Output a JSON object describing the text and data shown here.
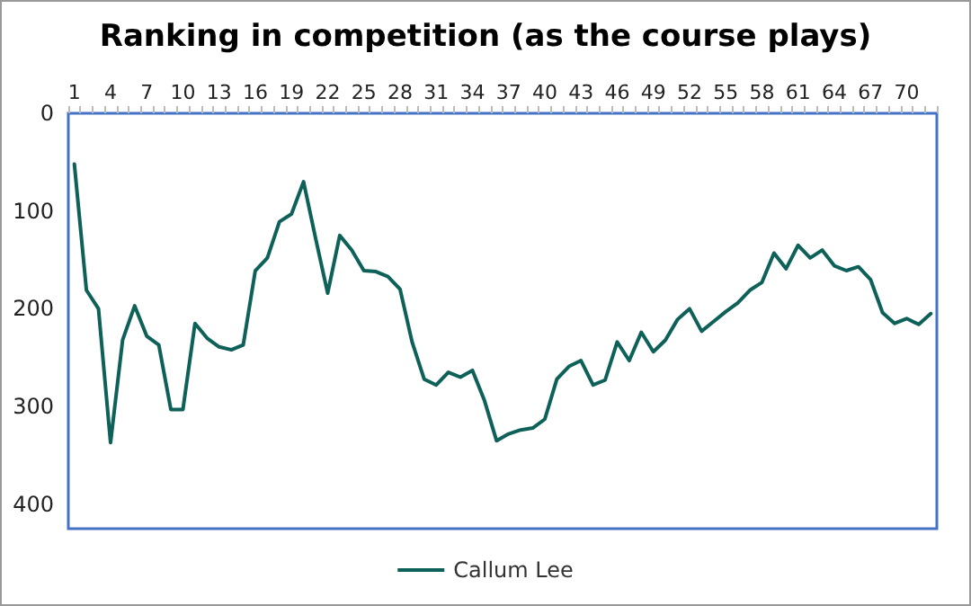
{
  "chart_data": {
    "type": "line",
    "title": "Ranking in competition (as the course plays)",
    "categories": [
      "1",
      null,
      null,
      "4",
      null,
      null,
      "7",
      null,
      null,
      "10",
      null,
      null,
      "13",
      null,
      null,
      "16",
      null,
      null,
      "19",
      null,
      null,
      "22",
      null,
      null,
      "25",
      null,
      null,
      "28",
      null,
      null,
      "31",
      null,
      null,
      "34",
      null,
      null,
      "37",
      null,
      null,
      "40",
      null,
      null,
      "43",
      null,
      null,
      "46",
      null,
      null,
      "49",
      null,
      null,
      "52",
      null,
      null,
      "55",
      null,
      null,
      "58",
      null,
      null,
      "61",
      null,
      null,
      "64",
      null,
      null,
      "67",
      null,
      null,
      "70",
      null,
      null
    ],
    "series": [
      {
        "name": "Callum Lee",
        "color": "#0e6158",
        "values": [
          52,
          181,
          200,
          337,
          232,
          197,
          228,
          237,
          303,
          303,
          215,
          230,
          239,
          242,
          237,
          161,
          148,
          111,
          103,
          70,
          128,
          184,
          125,
          140,
          161,
          162,
          167,
          180,
          234,
          272,
          278,
          265,
          270,
          263,
          294,
          335,
          328,
          324,
          322,
          313,
          272,
          259,
          253,
          278,
          273,
          234,
          253,
          224,
          244,
          232,
          211,
          200,
          223,
          213,
          203,
          194,
          181,
          173,
          143,
          159,
          135,
          148,
          140,
          156,
          161,
          157,
          170,
          204,
          215,
          210,
          216,
          205
        ]
      }
    ],
    "ylim": [
      425,
      0
    ],
    "yticks": [
      0,
      100,
      200,
      300,
      400
    ],
    "grid": false,
    "legend": "bottom",
    "marker": "none",
    "line_style": "solid"
  }
}
